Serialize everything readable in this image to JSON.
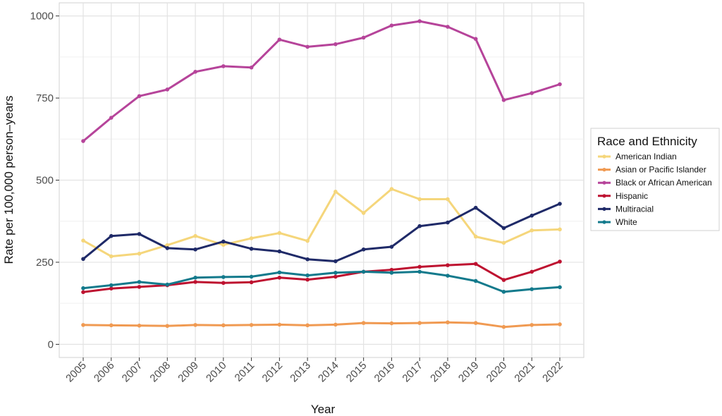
{
  "chart_data": {
    "type": "line",
    "xlabel": "Year",
    "ylabel": "Rate per 100,000 person–years",
    "x": [
      2005,
      2006,
      2007,
      2008,
      2009,
      2010,
      2011,
      2012,
      2013,
      2014,
      2015,
      2016,
      2017,
      2018,
      2019,
      2020,
      2021,
      2022
    ],
    "x_tick_labels": [
      "2005",
      "2006",
      "2007",
      "2008",
      "2009",
      "2010",
      "2011",
      "2012",
      "2013",
      "2014",
      "2015",
      "2016",
      "2017",
      "2018",
      "2019",
      "2020",
      "2021",
      "2022"
    ],
    "ylim": [
      -40,
      1040
    ],
    "y_ticks": [
      0,
      250,
      500,
      750,
      1000
    ],
    "y_tick_labels": [
      "0",
      "250",
      "500",
      "750",
      "1000"
    ],
    "grid": true,
    "legend": {
      "title": "Race and Ethnicity",
      "position": "right"
    },
    "series": [
      {
        "name": "American Indian",
        "color": "#F5D67B",
        "values": [
          316,
          268,
          276,
          302,
          330,
          303,
          323,
          339,
          315,
          465,
          400,
          473,
          442,
          442,
          328,
          309,
          347,
          350
        ]
      },
      {
        "name": "Asian or Pacific Islander",
        "color": "#F09A52",
        "values": [
          59,
          58,
          57,
          56,
          59,
          58,
          59,
          60,
          58,
          60,
          65,
          64,
          65,
          67,
          65,
          53,
          59,
          61
        ]
      },
      {
        "name": "Black or African American",
        "color": "#B6449A",
        "values": [
          619,
          690,
          756,
          776,
          830,
          847,
          843,
          928,
          906,
          914,
          934,
          971,
          984,
          967,
          930,
          744,
          765,
          792
        ]
      },
      {
        "name": "Hispanic",
        "color": "#BE1230",
        "values": [
          159,
          170,
          175,
          180,
          190,
          187,
          189,
          203,
          197,
          206,
          221,
          227,
          236,
          241,
          245,
          196,
          221,
          252
        ]
      },
      {
        "name": "Multiracial",
        "color": "#1F2A68",
        "values": [
          260,
          330,
          336,
          293,
          289,
          313,
          291,
          283,
          259,
          253,
          289,
          297,
          360,
          371,
          416,
          354,
          392,
          428
        ]
      },
      {
        "name": "White",
        "color": "#137A8C",
        "values": [
          171,
          180,
          190,
          182,
          203,
          205,
          206,
          219,
          210,
          218,
          221,
          218,
          221,
          209,
          193,
          160,
          168,
          174
        ]
      }
    ]
  }
}
